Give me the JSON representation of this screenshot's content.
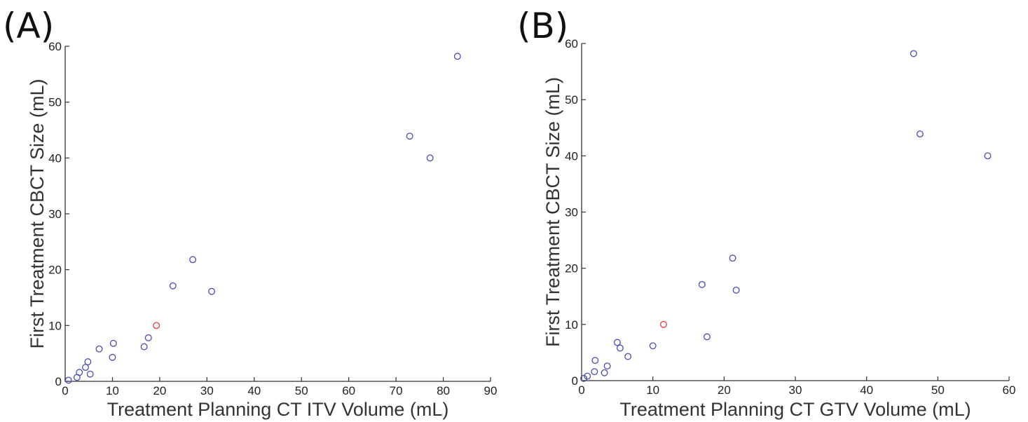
{
  "chart_data": [
    {
      "type": "scatter",
      "panel_label": "(A)",
      "title": "",
      "xlabel": "Treatment Planning CT ITV Volume (mL)",
      "ylabel": "First Treatment CBCT Size (mL)",
      "xlim": [
        0,
        90
      ],
      "ylim": [
        0,
        60
      ],
      "xticks": [
        "0",
        "10",
        "20",
        "30",
        "40",
        "50",
        "60",
        "70",
        "80",
        "90"
      ],
      "yticks": [
        "0",
        "10",
        "20",
        "30",
        "40",
        "50",
        "60"
      ],
      "grid": false,
      "marker_color": "#4b4bb0",
      "highlight_color": "#e03a3a",
      "points": [
        {
          "x": 0.7,
          "y": 0.2
        },
        {
          "x": 2.5,
          "y": 0.7
        },
        {
          "x": 3.0,
          "y": 1.6
        },
        {
          "x": 4.3,
          "y": 2.5
        },
        {
          "x": 4.8,
          "y": 3.5
        },
        {
          "x": 5.3,
          "y": 1.3
        },
        {
          "x": 7.2,
          "y": 5.8
        },
        {
          "x": 10.0,
          "y": 4.3
        },
        {
          "x": 10.2,
          "y": 6.8
        },
        {
          "x": 16.7,
          "y": 6.2
        },
        {
          "x": 17.6,
          "y": 7.8
        },
        {
          "x": 22.8,
          "y": 17.1
        },
        {
          "x": 27.0,
          "y": 21.8
        },
        {
          "x": 31.0,
          "y": 16.1
        },
        {
          "x": 72.9,
          "y": 43.9
        },
        {
          "x": 77.2,
          "y": 40.0
        },
        {
          "x": 83.0,
          "y": 58.2
        }
      ],
      "highlight": [
        {
          "x": 19.3,
          "y": 10.0
        }
      ]
    },
    {
      "type": "scatter",
      "panel_label": "(B)",
      "title": "",
      "xlabel": "Treatment Planning CT GTV Volume (mL)",
      "ylabel": "First Treatment CBCT Size (mL)",
      "xlim": [
        0,
        60
      ],
      "ylim": [
        0,
        60
      ],
      "xticks": [
        "0",
        "10",
        "20",
        "30",
        "40",
        "50",
        "60"
      ],
      "yticks": [
        "0",
        "10",
        "20",
        "30",
        "40",
        "50",
        "60"
      ],
      "grid": false,
      "marker_color": "#4b4bb0",
      "highlight_color": "#e03a3a",
      "points": [
        {
          "x": 0.3,
          "y": 0.4
        },
        {
          "x": 0.8,
          "y": 0.8
        },
        {
          "x": 1.8,
          "y": 1.6
        },
        {
          "x": 1.9,
          "y": 3.6
        },
        {
          "x": 3.2,
          "y": 1.4
        },
        {
          "x": 3.6,
          "y": 2.6
        },
        {
          "x": 5.0,
          "y": 6.8
        },
        {
          "x": 5.4,
          "y": 5.8
        },
        {
          "x": 6.5,
          "y": 4.3
        },
        {
          "x": 10.0,
          "y": 6.2
        },
        {
          "x": 16.9,
          "y": 17.1
        },
        {
          "x": 17.6,
          "y": 7.8
        },
        {
          "x": 21.2,
          "y": 21.8
        },
        {
          "x": 21.7,
          "y": 16.1
        },
        {
          "x": 46.6,
          "y": 58.2
        },
        {
          "x": 47.5,
          "y": 43.9
        },
        {
          "x": 57.0,
          "y": 40.0
        }
      ],
      "highlight": [
        {
          "x": 11.5,
          "y": 10.0
        }
      ]
    }
  ]
}
